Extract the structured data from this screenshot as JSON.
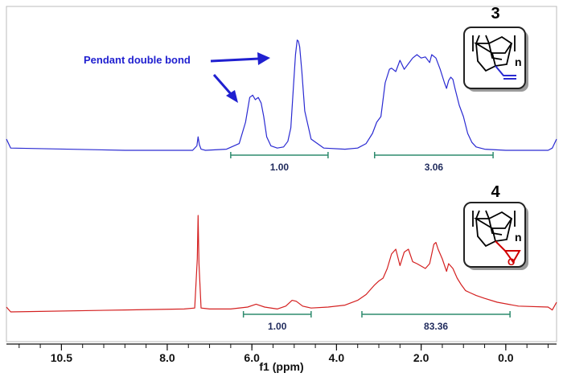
{
  "chart_data": {
    "type": "line",
    "xlabel": "f1 (ppm)",
    "x_reversed": true,
    "xlim": [
      11.8,
      -1.2
    ],
    "x_ticks": [
      {
        "value": 10.5,
        "label": "10.5"
      },
      {
        "value": 8.0,
        "label": "8.0"
      },
      {
        "value": 6.0,
        "label": "6.0"
      },
      {
        "value": 4.0,
        "label": "4.0"
      },
      {
        "value": 2.0,
        "label": "2.0"
      },
      {
        "value": 0.0,
        "label": "0.0"
      }
    ],
    "series": [
      {
        "name": "3",
        "color": "#2a2ad2",
        "x": [
          11.8,
          11.7,
          9.0,
          7.4,
          7.3,
          7.27,
          7.24,
          7.2,
          7.1,
          6.6,
          6.3,
          6.15,
          6.05,
          5.98,
          5.92,
          5.85,
          5.78,
          5.72,
          5.65,
          5.55,
          5.4,
          5.25,
          5.15,
          5.08,
          5.02,
          4.97,
          4.93,
          4.9,
          4.87,
          4.82,
          4.75,
          4.6,
          4.3,
          3.8,
          3.5,
          3.3,
          3.15,
          3.05,
          2.95,
          2.85,
          2.75,
          2.7,
          2.6,
          2.5,
          2.4,
          2.2,
          2.1,
          2.0,
          1.9,
          1.8,
          1.75,
          1.65,
          1.55,
          1.45,
          1.4,
          1.35,
          1.3,
          1.25,
          1.2,
          1.1,
          1.0,
          0.9,
          0.8,
          0.7,
          0.5,
          0.0,
          -1.0,
          -1.1,
          -1.2
        ],
        "y": [
          0.1,
          0.02,
          0.0,
          0.0,
          0.04,
          0.12,
          0.05,
          0.01,
          0.0,
          0.01,
          0.06,
          0.25,
          0.47,
          0.49,
          0.45,
          0.47,
          0.42,
          0.3,
          0.12,
          0.04,
          0.02,
          0.03,
          0.08,
          0.2,
          0.55,
          0.85,
          0.98,
          0.97,
          0.92,
          0.7,
          0.35,
          0.1,
          0.02,
          0.01,
          0.02,
          0.06,
          0.15,
          0.25,
          0.3,
          0.6,
          0.72,
          0.73,
          0.7,
          0.8,
          0.72,
          0.82,
          0.85,
          0.82,
          0.83,
          0.78,
          0.85,
          0.82,
          0.72,
          0.6,
          0.55,
          0.62,
          0.65,
          0.63,
          0.55,
          0.4,
          0.3,
          0.15,
          0.07,
          0.03,
          0.01,
          0.0,
          0.0,
          0.02,
          0.1
        ]
      },
      {
        "name": "4",
        "color": "#d42020",
        "x": [
          11.8,
          11.7,
          9.0,
          7.6,
          7.35,
          7.29,
          7.27,
          7.25,
          7.2,
          7.0,
          6.5,
          6.1,
          5.9,
          5.7,
          5.4,
          5.2,
          5.05,
          4.95,
          4.8,
          4.6,
          4.2,
          3.8,
          3.5,
          3.3,
          3.1,
          3.0,
          2.9,
          2.8,
          2.7,
          2.6,
          2.5,
          2.4,
          2.3,
          2.2,
          2.1,
          1.9,
          1.8,
          1.7,
          1.65,
          1.6,
          1.5,
          1.4,
          1.35,
          1.25,
          1.15,
          1.05,
          0.95,
          0.85,
          0.7,
          0.5,
          0.2,
          -0.3,
          -1.0,
          -1.1,
          -1.2
        ],
        "y": [
          0.05,
          0.0,
          0.02,
          0.03,
          0.04,
          0.55,
          1.0,
          0.5,
          0.04,
          0.03,
          0.03,
          0.05,
          0.08,
          0.05,
          0.03,
          0.06,
          0.12,
          0.11,
          0.06,
          0.04,
          0.05,
          0.07,
          0.12,
          0.18,
          0.28,
          0.32,
          0.35,
          0.45,
          0.6,
          0.65,
          0.48,
          0.62,
          0.65,
          0.52,
          0.5,
          0.45,
          0.5,
          0.7,
          0.72,
          0.65,
          0.55,
          0.42,
          0.5,
          0.45,
          0.35,
          0.28,
          0.22,
          0.2,
          0.17,
          0.14,
          0.1,
          0.06,
          0.05,
          0.02,
          0.1
        ]
      }
    ],
    "integrations": [
      {
        "spectrum": "3",
        "from": 6.5,
        "to": 4.2,
        "label": "1.00"
      },
      {
        "spectrum": "3",
        "from": 3.1,
        "to": 0.3,
        "label": "3.06"
      },
      {
        "spectrum": "4",
        "from": 6.2,
        "to": 4.6,
        "label": "1.00"
      },
      {
        "spectrum": "4",
        "from": 3.4,
        "to": -0.1,
        "label": "83.36"
      }
    ],
    "annotations": [
      {
        "text": "Pendant double bond",
        "color": "#2020d0"
      }
    ],
    "compound_labels": [
      "3",
      "4"
    ],
    "structure_subscript": "n",
    "structure_heteroatom": "O"
  }
}
